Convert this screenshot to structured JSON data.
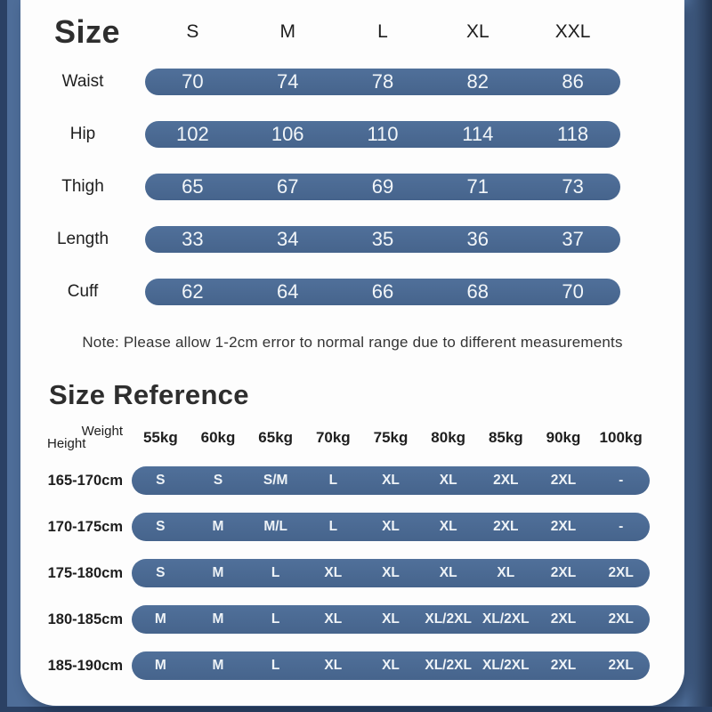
{
  "colors": {
    "bar": "#4a6a94",
    "frame": "#4e6d98",
    "edge": "#2b4164",
    "panel": "#fdfdfd",
    "bar_text": "#f2f6f9",
    "text": "#1e1e1e"
  },
  "size_table": {
    "title": "Size",
    "columns": [
      "S",
      "M",
      "L",
      "XL",
      "XXL"
    ],
    "rows": [
      {
        "label": "Waist",
        "values": [
          "70",
          "74",
          "78",
          "82",
          "86"
        ]
      },
      {
        "label": "Hip",
        "values": [
          "102",
          "106",
          "110",
          "114",
          "118"
        ]
      },
      {
        "label": "Thigh",
        "values": [
          "65",
          "67",
          "69",
          "71",
          "73"
        ]
      },
      {
        "label": "Length",
        "values": [
          "33",
          "34",
          "35",
          "36",
          "37"
        ]
      },
      {
        "label": "Cuff",
        "values": [
          "62",
          "64",
          "66",
          "68",
          "70"
        ]
      }
    ]
  },
  "note": "Note: Please allow 1-2cm error to normal range due to different measurements",
  "size_reference": {
    "title": "Size Reference",
    "corner": {
      "top": "Weight",
      "bottom": "Height"
    },
    "columns": [
      "55kg",
      "60kg",
      "65kg",
      "70kg",
      "75kg",
      "80kg",
      "85kg",
      "90kg",
      "100kg"
    ],
    "rows": [
      {
        "label": "165-170cm",
        "values": [
          "S",
          "S",
          "S/M",
          "L",
          "XL",
          "XL",
          "2XL",
          "2XL",
          "-"
        ]
      },
      {
        "label": "170-175cm",
        "values": [
          "S",
          "M",
          "M/L",
          "L",
          "XL",
          "XL",
          "2XL",
          "2XL",
          "-"
        ]
      },
      {
        "label": "175-180cm",
        "values": [
          "S",
          "M",
          "L",
          "XL",
          "XL",
          "XL",
          "XL",
          "2XL",
          "2XL"
        ]
      },
      {
        "label": "180-185cm",
        "values": [
          "M",
          "M",
          "L",
          "XL",
          "XL",
          "XL/2XL",
          "XL/2XL",
          "2XL",
          "2XL"
        ]
      },
      {
        "label": "185-190cm",
        "values": [
          "M",
          "M",
          "L",
          "XL",
          "XL",
          "XL/2XL",
          "XL/2XL",
          "2XL",
          "2XL"
        ]
      }
    ]
  }
}
